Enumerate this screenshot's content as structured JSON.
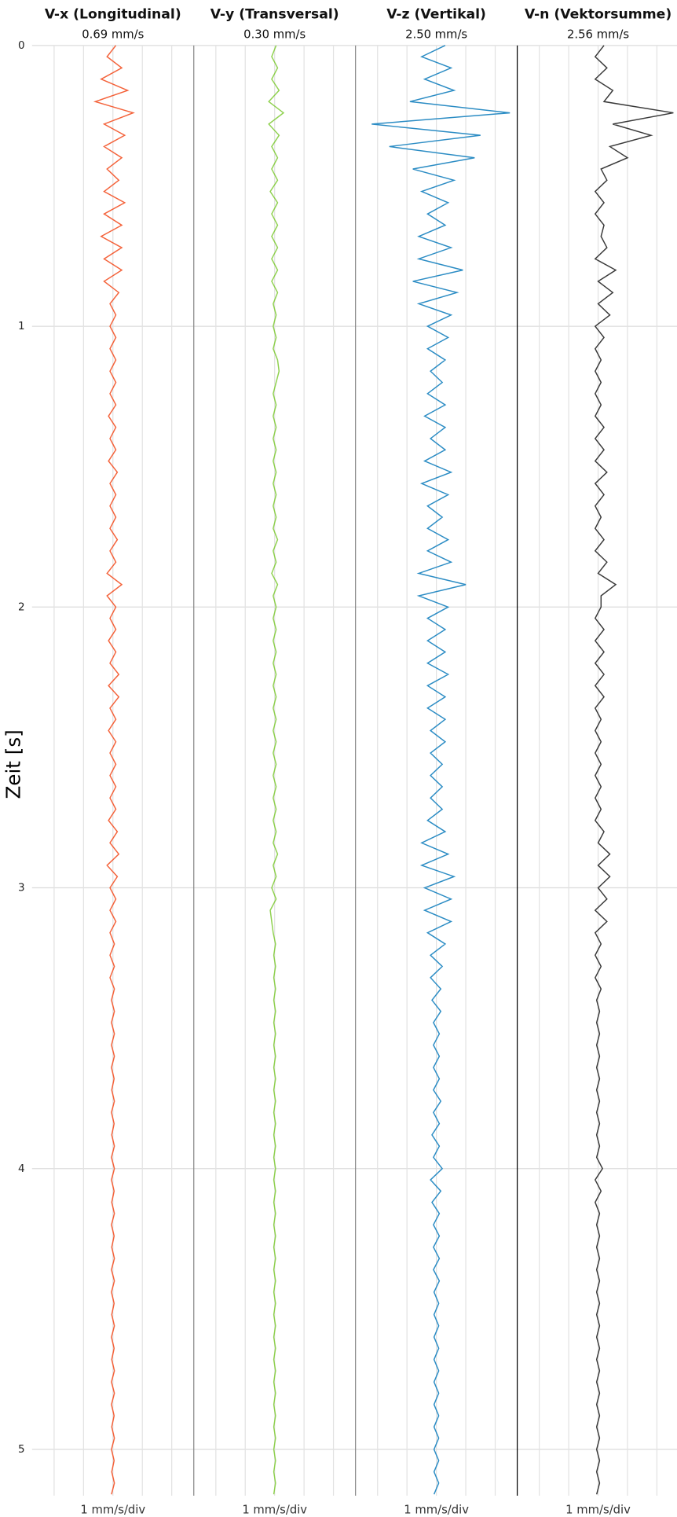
{
  "chart_data": {
    "type": "line",
    "xlabel": "Zeit [s]",
    "xlim": [
      0,
      5.165
    ],
    "xticks": [
      0,
      1,
      2,
      3,
      4,
      5
    ],
    "ylim": [
      -2.75,
      2.75
    ],
    "yticks": [
      -2,
      -1,
      0,
      1,
      2
    ],
    "grid": true,
    "x": [
      0,
      0.04,
      0.08,
      0.12,
      0.16,
      0.2,
      0.24,
      0.28,
      0.32,
      0.36,
      0.4,
      0.44,
      0.48,
      0.52,
      0.56,
      0.6,
      0.64,
      0.68,
      0.72,
      0.76,
      0.8,
      0.84,
      0.88,
      0.92,
      0.96,
      1,
      1.04,
      1.08,
      1.12,
      1.16,
      1.2,
      1.24,
      1.28,
      1.32,
      1.36,
      1.4,
      1.44,
      1.48,
      1.52,
      1.56,
      1.6,
      1.64,
      1.68,
      1.72,
      1.76,
      1.8,
      1.84,
      1.88,
      1.92,
      1.96,
      2,
      2.04,
      2.08,
      2.12,
      2.16,
      2.2,
      2.24,
      2.28,
      2.32,
      2.36,
      2.4,
      2.44,
      2.48,
      2.52,
      2.56,
      2.6,
      2.64,
      2.68,
      2.72,
      2.76,
      2.8,
      2.84,
      2.88,
      2.92,
      2.96,
      3,
      3.04,
      3.08,
      3.12,
      3.16,
      3.2,
      3.24,
      3.28,
      3.32,
      3.36,
      3.4,
      3.44,
      3.48,
      3.52,
      3.56,
      3.6,
      3.64,
      3.68,
      3.72,
      3.76,
      3.8,
      3.84,
      3.88,
      3.92,
      3.96,
      4,
      4.04,
      4.08,
      4.12,
      4.16,
      4.2,
      4.24,
      4.28,
      4.32,
      4.36,
      4.4,
      4.44,
      4.48,
      4.52,
      4.56,
      4.6,
      4.64,
      4.68,
      4.72,
      4.76,
      4.8,
      4.84,
      4.88,
      4.92,
      4.96,
      5,
      5.04,
      5.08,
      5.12,
      5.16
    ],
    "series": [
      {
        "name": "V-x (Longitudinal)",
        "peak": "0.69 mm/s",
        "unit_label": "1 mm/s/div",
        "color": "#f4623a",
        "values": [
          0.1,
          -0.2,
          0.3,
          -0.4,
          0.5,
          -0.6,
          0.69,
          -0.3,
          0.4,
          -0.3,
          0.3,
          -0.2,
          0.2,
          -0.3,
          0.4,
          -0.3,
          0.3,
          -0.4,
          0.3,
          -0.3,
          0.3,
          -0.3,
          0.2,
          -0.1,
          0.1,
          -0.1,
          0.1,
          -0.1,
          0.1,
          -0.1,
          0.1,
          -0.1,
          0.1,
          -0.15,
          0.1,
          -0.1,
          0.1,
          -0.15,
          0.15,
          -0.1,
          0.1,
          -0.1,
          0.1,
          -0.1,
          0.15,
          -0.1,
          0.1,
          -0.2,
          0.3,
          -0.2,
          0.1,
          -0.1,
          0.1,
          -0.15,
          0.1,
          -0.1,
          0.2,
          -0.15,
          0.2,
          -0.1,
          0.1,
          -0.15,
          0.1,
          -0.1,
          0.1,
          -0.1,
          0.1,
          -0.1,
          0.1,
          -0.15,
          0.15,
          -0.1,
          0.2,
          -0.2,
          0.15,
          -0.1,
          0.1,
          -0.1,
          0.1,
          -0.1,
          0.05,
          -0.1,
          0.05,
          -0.1,
          0.05,
          -0.05,
          0.05,
          -0.05,
          0.05,
          -0.05,
          0.05,
          -0.05,
          0.04,
          -0.04,
          0.05,
          -0.05,
          0.04,
          -0.04,
          0.05,
          -0.05,
          0.05,
          -0.05,
          0.04,
          -0.04,
          0.05,
          -0.05,
          0.04,
          -0.04,
          0.05,
          -0.05,
          0.05,
          -0.05,
          0.04,
          -0.04,
          0.05,
          -0.05,
          0.04,
          -0.04,
          0.05,
          -0.05,
          0.05,
          -0.05,
          0.04,
          -0.04,
          0.05,
          -0.05,
          0.04,
          -0.04,
          0.05,
          -0.05
        ]
      },
      {
        "name": "V-y (Transversal)",
        "peak": "0.30 mm/s",
        "unit_label": "1 mm/s/div",
        "color": "#8fd14f",
        "values": [
          0.05,
          -0.1,
          0.1,
          -0.1,
          0.15,
          -0.2,
          0.3,
          -0.2,
          0.15,
          -0.1,
          0.1,
          -0.1,
          0.1,
          -0.15,
          0.1,
          -0.1,
          0.1,
          -0.1,
          0.1,
          -0.1,
          0.1,
          -0.1,
          0.1,
          -0.05,
          0.05,
          -0.05,
          0.05,
          -0.05,
          0.1,
          0.15,
          0.05,
          -0.05,
          0.05,
          -0.05,
          0.05,
          -0.05,
          0.05,
          -0.05,
          0.05,
          -0.05,
          0.05,
          -0.05,
          0.05,
          -0.05,
          0.1,
          -0.05,
          0.05,
          -0.1,
          0.1,
          -0.05,
          0.05,
          -0.05,
          0.05,
          -0.05,
          0.05,
          -0.05,
          0.05,
          -0.05,
          0.05,
          -0.05,
          0.05,
          -0.05,
          0.05,
          -0.05,
          0.05,
          -0.05,
          0.05,
          -0.05,
          0.05,
          -0.05,
          0.05,
          -0.05,
          0.1,
          -0.05,
          0.05,
          -0.1,
          0.05,
          -0.15,
          -0.1,
          -0.05,
          0.03,
          -0.03,
          0.03,
          -0.03,
          0.03,
          -0.03,
          0.03,
          -0.03,
          0.03,
          -0.03,
          0.03,
          -0.03,
          0.03,
          -0.03,
          0.03,
          -0.03,
          0.03,
          -0.03,
          0.03,
          -0.03,
          0.03,
          -0.03,
          0.03,
          -0.03,
          0.03,
          -0.03,
          0.03,
          -0.03,
          0.03,
          -0.03,
          0.03,
          -0.03,
          0.03,
          -0.03,
          0.03,
          -0.03,
          0.03,
          -0.03,
          0.03,
          -0.03,
          0.03,
          -0.03,
          0.03,
          -0.03,
          0.03,
          -0.03,
          0.03,
          -0.03,
          0.03,
          -0.03
        ]
      },
      {
        "name": "V-z (Vertikal)",
        "peak": "2.50 mm/s",
        "unit_label": "1 mm/s/div",
        "color": "#2b8cc4",
        "values": [
          0.3,
          -0.5,
          0.5,
          -0.4,
          0.6,
          -0.9,
          2.5,
          -2.2,
          1.5,
          -1.6,
          1.3,
          -0.8,
          0.6,
          -0.5,
          0.4,
          -0.3,
          0.3,
          -0.6,
          0.5,
          -0.6,
          0.9,
          -0.8,
          0.7,
          -0.6,
          0.5,
          -0.3,
          0.4,
          -0.3,
          0.3,
          -0.2,
          0.2,
          -0.3,
          0.3,
          -0.4,
          0.3,
          -0.2,
          0.3,
          -0.4,
          0.5,
          -0.5,
          0.4,
          -0.3,
          0.2,
          -0.3,
          0.4,
          -0.3,
          0.5,
          -0.6,
          1.0,
          -0.6,
          0.4,
          -0.3,
          0.3,
          -0.3,
          0.3,
          -0.3,
          0.4,
          -0.3,
          0.3,
          -0.3,
          0.3,
          -0.2,
          0.3,
          -0.2,
          0.2,
          -0.2,
          0.2,
          -0.2,
          0.2,
          -0.3,
          0.3,
          -0.5,
          0.4,
          -0.5,
          0.6,
          -0.4,
          0.5,
          -0.4,
          0.5,
          -0.3,
          0.3,
          -0.2,
          0.2,
          -0.2,
          0.15,
          -0.15,
          0.15,
          -0.1,
          0.1,
          -0.1,
          0.1,
          -0.1,
          0.1,
          -0.1,
          0.15,
          -0.1,
          0.1,
          -0.15,
          0.1,
          -0.1,
          0.2,
          -0.2,
          0.15,
          -0.15,
          0.1,
          -0.1,
          0.1,
          -0.1,
          0.1,
          -0.1,
          0.1,
          -0.08,
          0.08,
          -0.08,
          0.08,
          -0.08,
          0.08,
          -0.08,
          0.08,
          -0.08,
          0.08,
          -0.08,
          0.08,
          -0.08,
          0.08,
          -0.08,
          0.08,
          -0.08,
          0.08,
          -0.08
        ]
      },
      {
        "name": "V-n (Vektorsumme)",
        "peak": "2.56 mm/s",
        "unit_label": "1 mm/s/div",
        "color": "#3a3a3a",
        "values": [
          0.2,
          -0.1,
          0.3,
          -0.1,
          0.5,
          0.2,
          2.56,
          0.5,
          1.8,
          0.4,
          1.0,
          0.1,
          0.3,
          -0.1,
          0.2,
          -0.1,
          0.2,
          0.1,
          0.3,
          -0.1,
          0.6,
          0.0,
          0.5,
          0.0,
          0.4,
          -0.1,
          0.2,
          -0.1,
          0.1,
          -0.1,
          0.1,
          -0.1,
          0.1,
          -0.1,
          0.2,
          -0.1,
          0.2,
          -0.1,
          0.3,
          -0.1,
          0.2,
          -0.1,
          0.1,
          -0.1,
          0.2,
          -0.1,
          0.3,
          0.0,
          0.6,
          0.1,
          0.1,
          -0.1,
          0.2,
          -0.1,
          0.2,
          -0.1,
          0.2,
          -0.1,
          0.2,
          -0.1,
          0.1,
          -0.1,
          0.1,
          -0.1,
          0.1,
          -0.1,
          0.1,
          -0.1,
          0.1,
          -0.1,
          0.2,
          0.0,
          0.4,
          0.0,
          0.4,
          0.0,
          0.3,
          -0.1,
          0.3,
          -0.1,
          0.1,
          -0.1,
          0.1,
          -0.1,
          0.1,
          -0.05,
          0.05,
          -0.05,
          0.05,
          -0.05,
          0.05,
          -0.05,
          0.05,
          -0.05,
          0.05,
          -0.05,
          0.05,
          -0.05,
          0.05,
          -0.05,
          0.15,
          -0.1,
          0.1,
          -0.1,
          0.05,
          -0.05,
          0.05,
          -0.05,
          0.05,
          -0.05,
          0.05,
          -0.05,
          0.05,
          -0.05,
          0.05,
          -0.05,
          0.05,
          -0.05,
          0.05,
          -0.05,
          0.05,
          -0.05,
          0.05,
          -0.05,
          0.05,
          -0.05,
          0.05,
          -0.05,
          0.05,
          -0.05
        ]
      }
    ]
  }
}
